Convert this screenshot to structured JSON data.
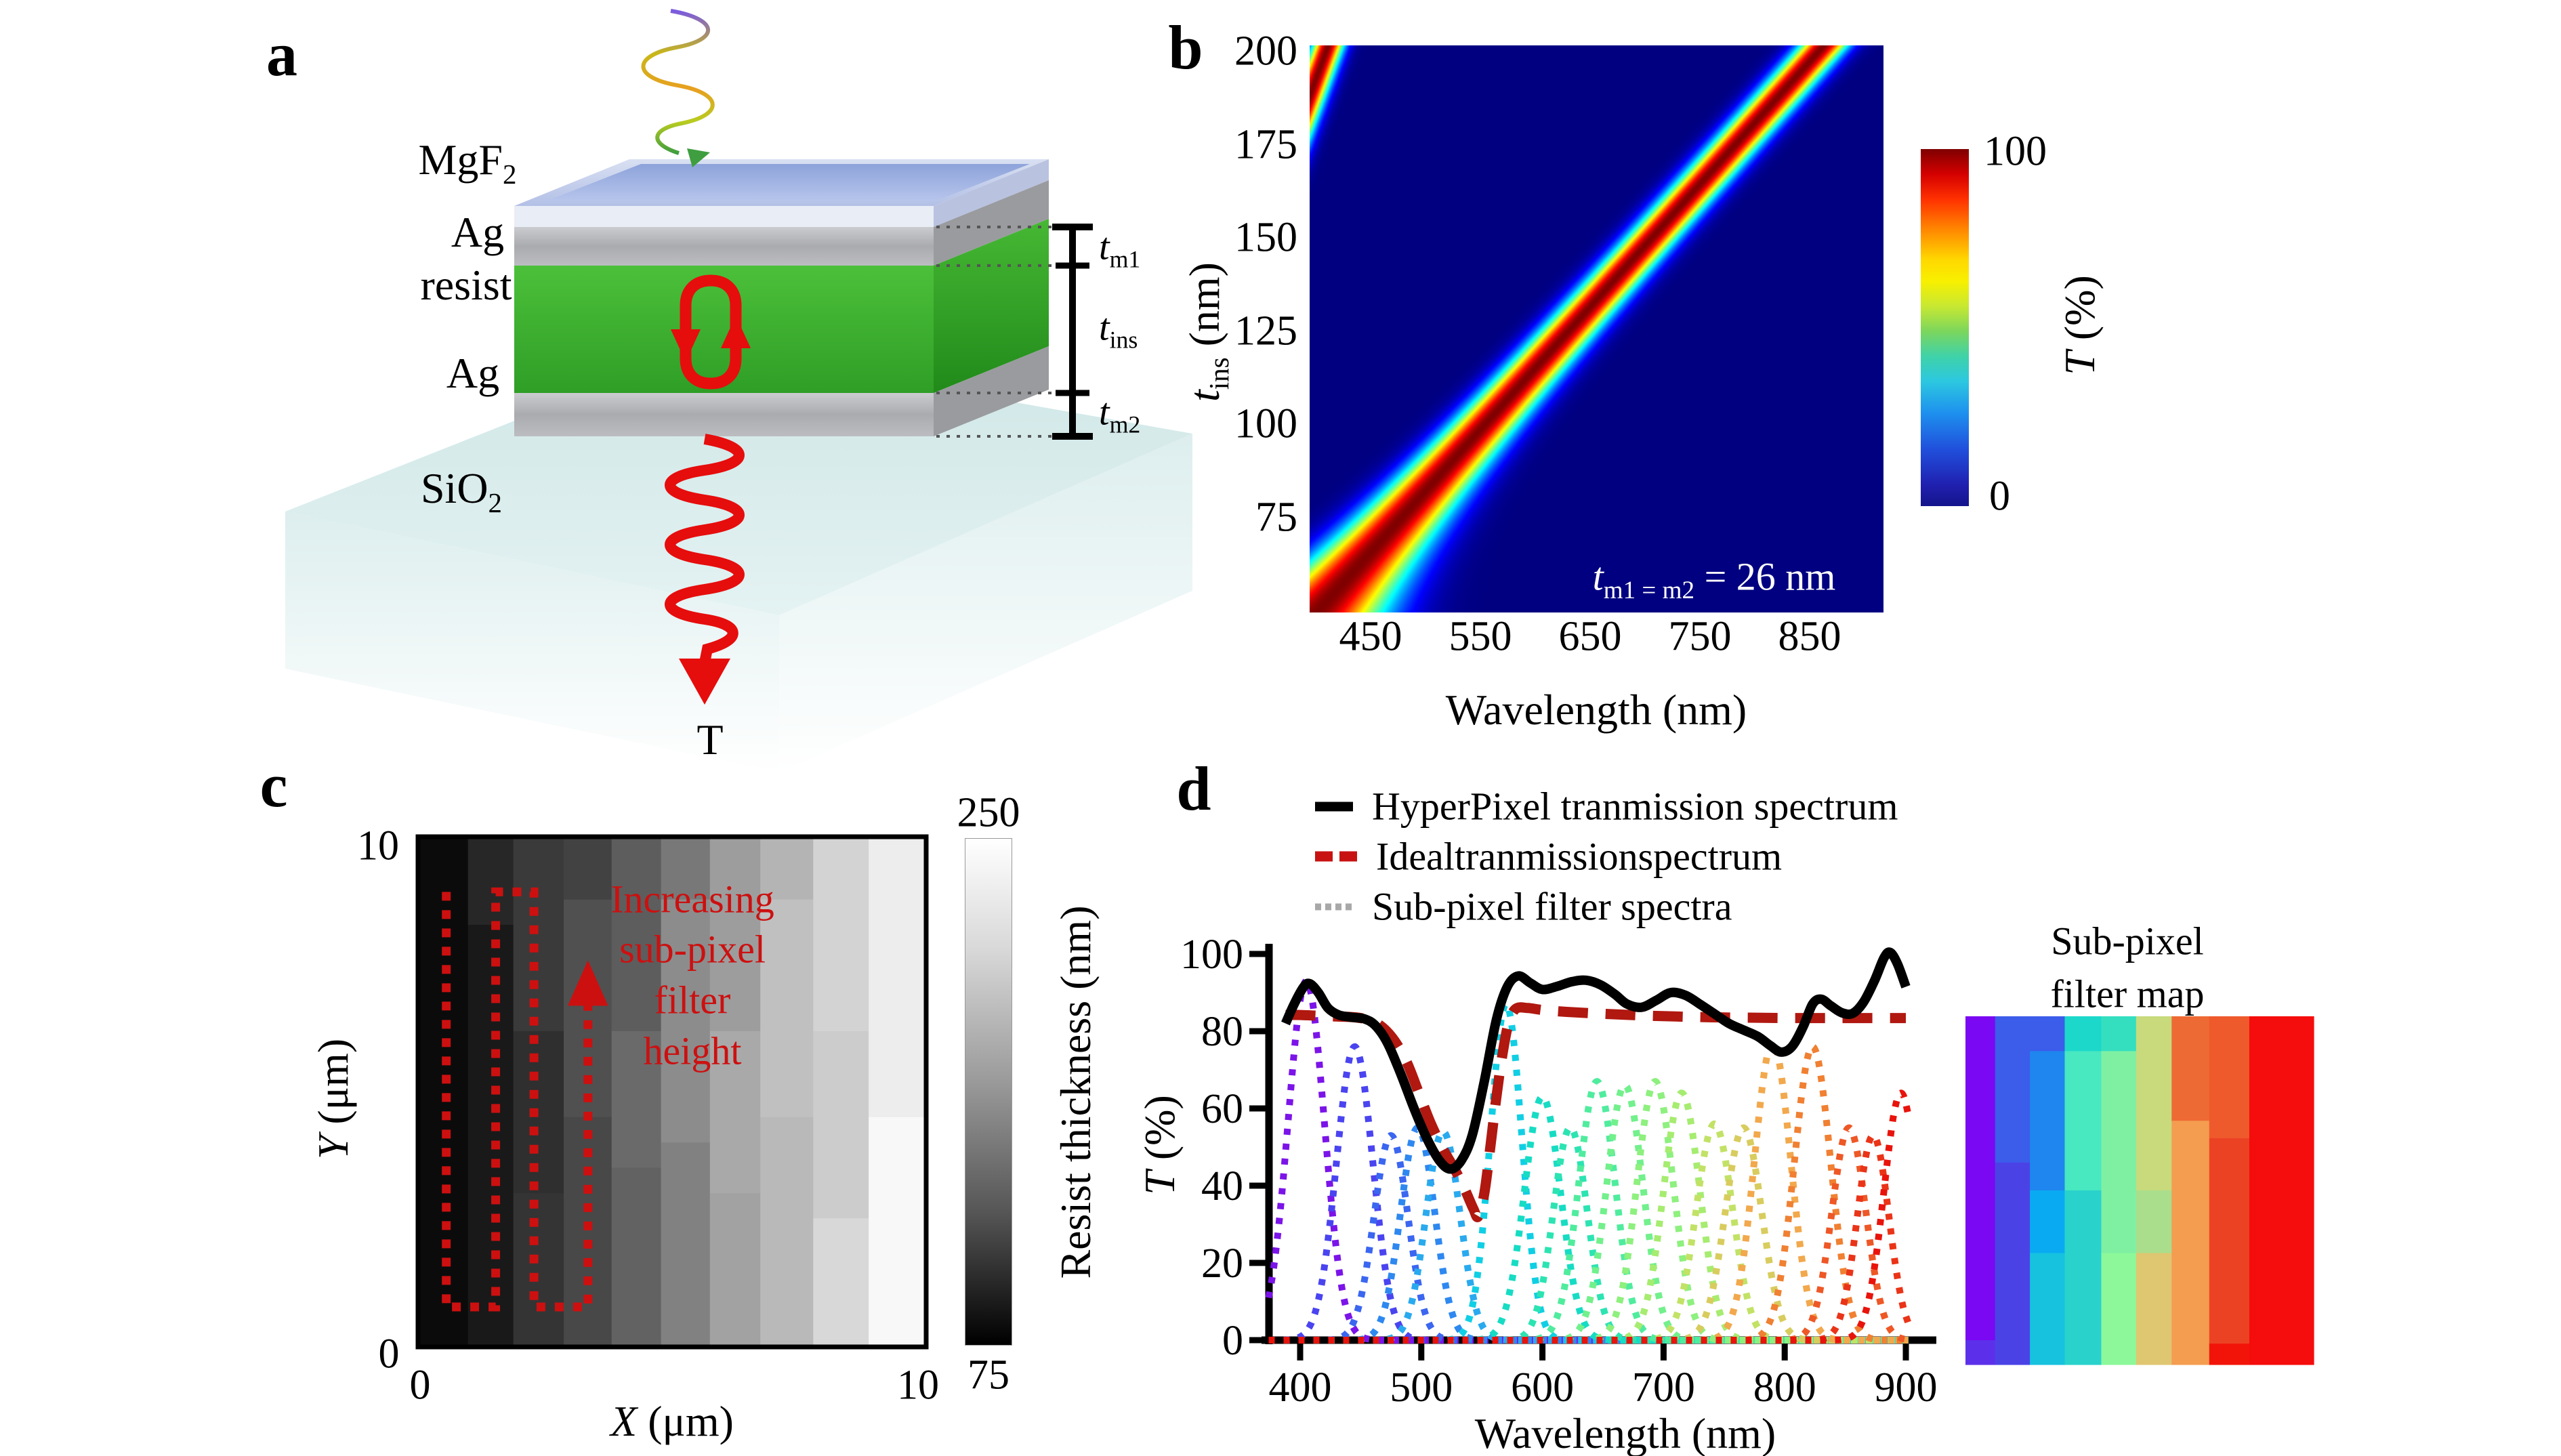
{
  "panel_a": {
    "letter": "a",
    "layers": [
      {
        "text": "MgF",
        "sub": "2"
      },
      {
        "text": "Ag"
      },
      {
        "text": "resist"
      },
      {
        "text": "Ag"
      },
      {
        "text": "SiO",
        "sub": "2"
      }
    ],
    "dims": [
      {
        "main": "t",
        "sub": "m1"
      },
      {
        "main": "t",
        "sub": "ins"
      },
      {
        "main": "t",
        "sub": "m2"
      }
    ],
    "transmission_label": "T",
    "colors": {
      "resist_green": "#3fae31",
      "silver": "#b9babe",
      "mgf2_blue": "#a9b9e4",
      "base_cyan": "#d9eaea",
      "arrow_red": "#e60d0d"
    }
  },
  "panel_b": {
    "letter": "b",
    "xlabel": "Wavelength (nm)",
    "ylabel": {
      "var": "t",
      "sub": "ins",
      "rest": " (nm)"
    },
    "annotation": {
      "var": "t",
      "sub": "m1 = m2",
      "rest": " = 26 nm"
    },
    "colorbar": {
      "max": "100",
      "min": "0",
      "label_var": "T",
      "label_rest": " (%)"
    }
  },
  "panel_c": {
    "letter": "c",
    "xlabel": {
      "var": "X",
      "rest": " (μm)"
    },
    "ylabel": {
      "var": "Y",
      "rest": " (μm)"
    },
    "yticks": [
      "10",
      "0"
    ],
    "xticks": [
      "0",
      "10"
    ],
    "colorbar": {
      "max": "250",
      "min": "75",
      "label": "Resist thickness (nm)"
    },
    "note": [
      "Increasing",
      "sub-pixel",
      "filter",
      "height"
    ]
  },
  "panel_d": {
    "letter": "d",
    "legend": [
      {
        "label": "HyperPixel tranmission spectrum",
        "style": "solid-black"
      },
      {
        "label": "Idealtranmissionspectrum",
        "style": "dashed-red"
      },
      {
        "label": "Sub-pixel filter spectra",
        "style": "dotted-gray"
      }
    ],
    "ylabel": {
      "var": "T",
      "rest": " (%)"
    },
    "xlabel": "Wavelength (nm)",
    "filter_map_title": [
      "Sub-pixel",
      "filter map"
    ]
  },
  "chart_data": [
    {
      "id": "panel_b_heatmap",
      "type": "heatmap",
      "title": "",
      "xlabel": "Wavelength (nm)",
      "ylabel": "t_ins (nm)",
      "x_range": [
        394,
        917
      ],
      "y_range": [
        49.5,
        201.6
      ],
      "x_ticks": [
        450,
        550,
        650,
        750,
        850
      ],
      "y_ticks": [
        200,
        175,
        150,
        125,
        100,
        75
      ],
      "colorbar": {
        "label": "T (%)",
        "min": 0,
        "max": 100,
        "colormap": "jet"
      },
      "annotation": "t_m1=m2 = 26 nm",
      "resonance_bands": [
        {
          "lambda_intercept": 250,
          "lambda_slope": 3.04,
          "sigma_base": 15,
          "sigma_extra": 28,
          "sigma_decay": 35
        },
        {
          "lambda_intercept": 159,
          "lambda_slope": 1.25,
          "sigma_base": 10,
          "sigma_extra": 2,
          "sigma_decay": 60
        }
      ]
    },
    {
      "id": "panel_c_map",
      "type": "heatmap",
      "xlabel": "X (um)",
      "ylabel": "Y (um)",
      "x_range": [
        0,
        10
      ],
      "y_range": [
        0,
        10
      ],
      "colorbar": {
        "label": "Resist thickness (nm)",
        "min": 75,
        "max": 250
      },
      "columns": [
        {
          "x0": 0.0,
          "x1": 0.095,
          "segments": [
            [
              0,
              1,
              "#0b0b0b"
            ]
          ]
        },
        {
          "x0": 0.095,
          "x1": 0.185,
          "segments": [
            [
              0,
              0.17,
              "#272727"
            ],
            [
              0.17,
              1,
              "#191919"
            ]
          ]
        },
        {
          "x0": 0.185,
          "x1": 0.285,
          "segments": [
            [
              0,
              0.38,
              "#3a3a3a"
            ],
            [
              0.38,
              0.7,
              "#2f2f2f"
            ],
            [
              0.7,
              1,
              "#343434"
            ]
          ]
        },
        {
          "x0": 0.285,
          "x1": 0.38,
          "segments": [
            [
              0,
              0.12,
              "#424242"
            ],
            [
              0.12,
              0.55,
              "#505050"
            ],
            [
              0.55,
              1,
              "#484848"
            ]
          ]
        },
        {
          "x0": 0.38,
          "x1": 0.478,
          "segments": [
            [
              0,
              0.38,
              "#5d5d5d"
            ],
            [
              0.38,
              0.65,
              "#6a6a6a"
            ],
            [
              0.65,
              1,
              "#626262"
            ]
          ]
        },
        {
          "x0": 0.478,
          "x1": 0.575,
          "segments": [
            [
              0,
              0.12,
              "#787878"
            ],
            [
              0.12,
              0.6,
              "#8c8c8c"
            ],
            [
              0.6,
              1,
              "#818181"
            ]
          ]
        },
        {
          "x0": 0.575,
          "x1": 0.675,
          "segments": [
            [
              0,
              0.38,
              "#9d9d9d"
            ],
            [
              0.38,
              0.7,
              "#a9a9a9"
            ],
            [
              0.7,
              1,
              "#a2a2a2"
            ]
          ]
        },
        {
          "x0": 0.675,
          "x1": 0.78,
          "segments": [
            [
              0,
              0.12,
              "#b4b4b4"
            ],
            [
              0.12,
              0.55,
              "#c0c0c0"
            ],
            [
              0.55,
              1,
              "#b9b9b9"
            ]
          ]
        },
        {
          "x0": 0.78,
          "x1": 0.89,
          "segments": [
            [
              0,
              0.38,
              "#d3d3d3"
            ],
            [
              0.38,
              0.75,
              "#cccccc"
            ],
            [
              0.75,
              1,
              "#d8d8d8"
            ]
          ]
        },
        {
          "x0": 0.89,
          "x1": 1.0,
          "segments": [
            [
              0,
              0.55,
              "#ededed"
            ],
            [
              0.55,
              1,
              "#f8f8f8"
            ]
          ]
        }
      ],
      "scan_path": [
        [
          0.052,
          0.105
        ],
        [
          0.052,
          0.925
        ],
        [
          0.15,
          0.925
        ],
        [
          0.15,
          0.105
        ],
        [
          0.226,
          0.105
        ],
        [
          0.226,
          0.925
        ],
        [
          0.333,
          0.925
        ],
        [
          0.333,
          0.33
        ]
      ],
      "scan_arrow": {
        "tip": [
          0.333,
          0.24
        ],
        "base": 0.33,
        "half_width": 0.04
      }
    },
    {
      "id": "panel_d_spectra",
      "type": "line",
      "xlabel": "Wavelength (nm)",
      "ylabel": "T (%)",
      "xlim": [
        374,
        924
      ],
      "ylim": [
        0,
        100
      ],
      "x_ticks": [
        400,
        500,
        600,
        700,
        800,
        900
      ],
      "y_ticks": [
        0,
        20,
        40,
        60,
        80,
        100
      ],
      "series": [
        {
          "name": "HyperPixel tranmission spectrum",
          "color": "#000000",
          "style": "solid",
          "points": [
            [
              388,
              82
            ],
            [
              395,
              87
            ],
            [
              403,
              91.5
            ],
            [
              408,
              92.3
            ],
            [
              415,
              90
            ],
            [
              423,
              86
            ],
            [
              432,
              84.2
            ],
            [
              443,
              83.6
            ],
            [
              453,
              83.2
            ],
            [
              462,
              81.5
            ],
            [
              472,
              77
            ],
            [
              483,
              69
            ],
            [
              494,
              60
            ],
            [
              505,
              52
            ],
            [
              515,
              46.5
            ],
            [
              524,
              44.3
            ],
            [
              533,
              46.5
            ],
            [
              542,
              53
            ],
            [
              552,
              67
            ],
            [
              562,
              83
            ],
            [
              571,
              91.5
            ],
            [
              580,
              94.3
            ],
            [
              590,
              92.5
            ],
            [
              600,
              90.8
            ],
            [
              612,
              91.6
            ],
            [
              624,
              92.8
            ],
            [
              636,
              93.2
            ],
            [
              648,
              92
            ],
            [
              660,
              89.5
            ],
            [
              670,
              87
            ],
            [
              682,
              86.2
            ],
            [
              694,
              88
            ],
            [
              706,
              90
            ],
            [
              718,
              89.3
            ],
            [
              730,
              87
            ],
            [
              742,
              84.5
            ],
            [
              754,
              82
            ],
            [
              766,
              80.3
            ],
            [
              778,
              78.6
            ],
            [
              788,
              76.3
            ],
            [
              797,
              74.6
            ],
            [
              806,
              76
            ],
            [
              815,
              81
            ],
            [
              823,
              87
            ],
            [
              830,
              88.3
            ],
            [
              838,
              86.6
            ],
            [
              847,
              84.8
            ],
            [
              856,
              84.6
            ],
            [
              865,
              87.5
            ],
            [
              874,
              93
            ],
            [
              882,
              99
            ],
            [
              887,
              100.4
            ],
            [
              893,
              97.5
            ],
            [
              900,
              91.5
            ]
          ]
        },
        {
          "name": "Idealtranmissionspectrum",
          "color": "#b01810",
          "style": "dashed",
          "points": [
            [
              388,
              84.2
            ],
            [
              400,
              84.2
            ],
            [
              415,
              84
            ],
            [
              430,
              83.8
            ],
            [
              445,
              83.6
            ],
            [
              458,
              82.8
            ],
            [
              468,
              81
            ],
            [
              478,
              77.5
            ],
            [
              488,
              72
            ],
            [
              498,
              64
            ],
            [
              508,
              56
            ],
            [
              518,
              49.5
            ],
            [
              528,
              44
            ],
            [
              536,
              39
            ],
            [
              543,
              34
            ],
            [
              547,
              32
            ],
            [
              552,
              38
            ],
            [
              557,
              50
            ],
            [
              562,
              63
            ],
            [
              567,
              74
            ],
            [
              572,
              82
            ],
            [
              578,
              85.8
            ],
            [
              588,
              86
            ],
            [
              600,
              85.5
            ],
            [
              620,
              85
            ],
            [
              650,
              84.5
            ],
            [
              680,
              84.1
            ],
            [
              710,
              83.8
            ],
            [
              740,
              83.6
            ],
            [
              770,
              83.5
            ],
            [
              800,
              83.4
            ],
            [
              830,
              83.4
            ],
            [
              860,
              83.4
            ],
            [
              900,
              83.4
            ]
          ]
        }
      ],
      "filters": [
        {
          "center": 405,
          "height": 93,
          "sigma": 15,
          "color": "#7b14e8"
        },
        {
          "center": 445,
          "height": 76,
          "sigma": 15,
          "color": "#4a44f0"
        },
        {
          "center": 475,
          "height": 53,
          "sigma": 14,
          "color": "#3b66f0"
        },
        {
          "center": 497,
          "height": 55,
          "sigma": 14,
          "color": "#2e88f0"
        },
        {
          "center": 518,
          "height": 54,
          "sigma": 14,
          "color": "#2aaaee"
        },
        {
          "center": 570,
          "height": 87,
          "sigma": 13,
          "color": "#10cfe4"
        },
        {
          "center": 600,
          "height": 63,
          "sigma": 15,
          "color": "#17dcc4"
        },
        {
          "center": 623,
          "height": 55,
          "sigma": 14,
          "color": "#2ce4b2"
        },
        {
          "center": 645,
          "height": 67,
          "sigma": 15,
          "color": "#50ec9e"
        },
        {
          "center": 668,
          "height": 66,
          "sigma": 15,
          "color": "#72f08c"
        },
        {
          "center": 693,
          "height": 67,
          "sigma": 15,
          "color": "#8ef07e"
        },
        {
          "center": 715,
          "height": 64,
          "sigma": 15,
          "color": "#a6ec70"
        },
        {
          "center": 742,
          "height": 56,
          "sigma": 15,
          "color": "#c2e266"
        },
        {
          "center": 766,
          "height": 55,
          "sigma": 15,
          "color": "#d8cc5e"
        },
        {
          "center": 790,
          "height": 77,
          "sigma": 15,
          "color": "#f2a84c"
        },
        {
          "center": 823,
          "height": 76,
          "sigma": 15,
          "color": "#f08032"
        },
        {
          "center": 853,
          "height": 55,
          "sigma": 14,
          "color": "#ee5826"
        },
        {
          "center": 873,
          "height": 53,
          "sigma": 13,
          "color": "#ea3418"
        },
        {
          "center": 896,
          "height": 64,
          "sigma": 14,
          "color": "#e8140c"
        }
      ],
      "filter_map_columns": [
        {
          "x0": 0.0,
          "x1": 0.085,
          "segments": [
            [
              0,
              0.93,
              "#7a08f2"
            ],
            [
              0.93,
              1,
              "#5c30ea"
            ]
          ]
        },
        {
          "x0": 0.085,
          "x1": 0.185,
          "segments": [
            [
              0,
              0.42,
              "#3c5cea"
            ],
            [
              0.42,
              1,
              "#4b42e6"
            ]
          ]
        },
        {
          "x0": 0.185,
          "x1": 0.285,
          "segments": [
            [
              0,
              0.1,
              "#3c5cea"
            ],
            [
              0.1,
              0.5,
              "#1e86ee"
            ],
            [
              0.5,
              0.68,
              "#0aaaf2"
            ],
            [
              0.68,
              1,
              "#16c2de"
            ]
          ]
        },
        {
          "x0": 0.285,
          "x1": 0.39,
          "segments": [
            [
              0,
              0.1,
              "#1cd8ca"
            ],
            [
              0.1,
              0.5,
              "#48e8c0"
            ],
            [
              0.5,
              1,
              "#2ad2cc"
            ]
          ]
        },
        {
          "x0": 0.39,
          "x1": 0.49,
          "segments": [
            [
              0,
              0.1,
              "#34dfc0"
            ],
            [
              0.1,
              0.68,
              "#7ff0a2"
            ],
            [
              0.68,
              1,
              "#8df89a"
            ]
          ]
        },
        {
          "x0": 0.49,
          "x1": 0.592,
          "segments": [
            [
              0,
              0.5,
              "#c8da7c"
            ],
            [
              0.5,
              0.68,
              "#aade8c"
            ],
            [
              0.68,
              1,
              "#dfc671"
            ]
          ]
        },
        {
          "x0": 0.592,
          "x1": 0.7,
          "segments": [
            [
              0,
              0.3,
              "#ee6a34"
            ],
            [
              0.3,
              1,
              "#f49c50"
            ]
          ]
        },
        {
          "x0": 0.7,
          "x1": 0.815,
          "segments": [
            [
              0,
              0.35,
              "#ee5a2c"
            ],
            [
              0.35,
              0.94,
              "#ec4224"
            ],
            [
              0.94,
              1,
              "#f21408"
            ]
          ]
        },
        {
          "x0": 0.815,
          "x1": 1.0,
          "segments": [
            [
              0,
              1,
              "#f50c0c"
            ]
          ]
        }
      ]
    }
  ]
}
